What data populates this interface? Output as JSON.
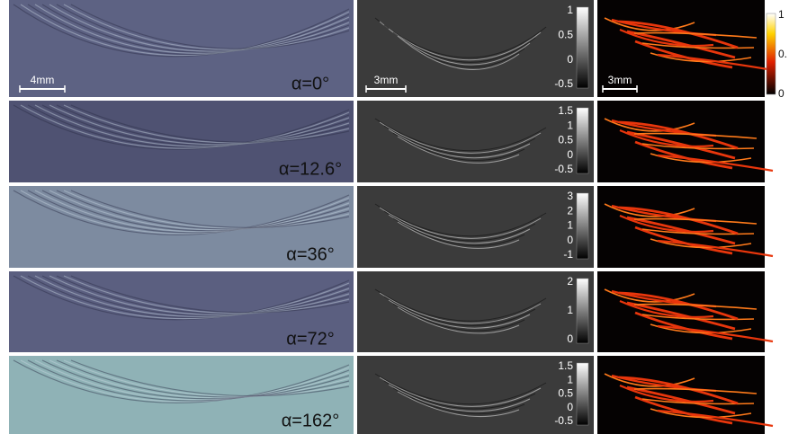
{
  "panels": [
    {
      "alpha": "α=0°",
      "colorbar_ticks": [
        "1",
        "0.5",
        "0",
        "-0.5"
      ]
    },
    {
      "alpha": "α=12.6°",
      "colorbar_ticks": [
        "1.5",
        "1",
        "0.5",
        "0",
        "-0.5"
      ]
    },
    {
      "alpha": "α=36°",
      "colorbar_ticks": [
        "3",
        "2",
        "1",
        "0",
        "-1"
      ]
    },
    {
      "alpha": "α=72°",
      "colorbar_ticks": [
        "2",
        "1",
        "0"
      ]
    },
    {
      "alpha": "α=162°",
      "colorbar_ticks": [
        "1.5",
        "1",
        "0.5",
        "0",
        "-0.5"
      ]
    }
  ],
  "scale_bars": [
    "4mm",
    "3mm",
    "3mm"
  ],
  "main_colorbar_ticks": [
    "1",
    "0.",
    "0"
  ]
}
